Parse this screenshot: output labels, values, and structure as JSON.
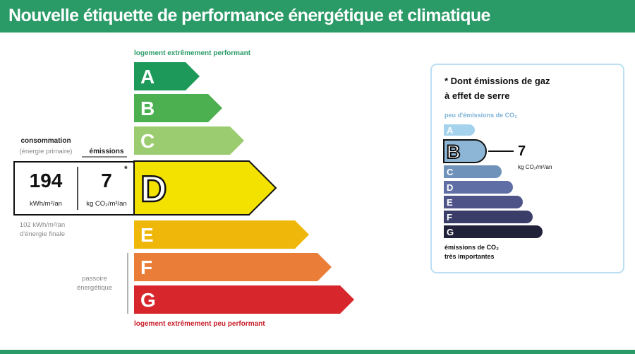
{
  "title": "Nouvelle étiquette de performance énergétique et climatique",
  "top_note": "logement extrêmement performant",
  "bottom_note": "logement extrêmement peu performant",
  "classes": [
    {
      "letter": "A",
      "color": "#1d9a5a"
    },
    {
      "letter": "B",
      "color": "#4caf50"
    },
    {
      "letter": "C",
      "color": "#9bcc6f"
    },
    {
      "letter": "D",
      "color": "#f3e100"
    },
    {
      "letter": "E",
      "color": "#efb70a"
    },
    {
      "letter": "F",
      "color": "#ea7e38"
    },
    {
      "letter": "G",
      "color": "#d7262c"
    }
  ],
  "current_class": "D",
  "consumption": {
    "title": "consommation",
    "subtitle": "(énergie primaire)",
    "value": "194",
    "unit": "kWh/m²/an",
    "final_line1": "102 kWh/m²/an",
    "final_line2": "d'énergie finale"
  },
  "emissions": {
    "title": "émissions",
    "value": "7",
    "unit": "kg CO₂/m²/an",
    "star": "*"
  },
  "passoire": {
    "line1": "passoire",
    "line2": "énergétique"
  },
  "ges_panel": {
    "title_line1": "* Dont émissions de gaz",
    "title_line2": "à effet de serre",
    "top_label": "peu d'émissions de CO₂",
    "bottom_line1": "émissions de CO₂",
    "bottom_line2": "très importantes",
    "current_class": "B",
    "value": "7",
    "unit": "kg CO₂/m²/an",
    "classes": [
      {
        "letter": "A",
        "color": "#a5d3ee"
      },
      {
        "letter": "B",
        "color": "#8db6d6"
      },
      {
        "letter": "C",
        "color": "#6f92ba"
      },
      {
        "letter": "D",
        "color": "#5f6ea5"
      },
      {
        "letter": "E",
        "color": "#4f5488"
      },
      {
        "letter": "F",
        "color": "#393d68"
      },
      {
        "letter": "G",
        "color": "#22213a"
      }
    ]
  }
}
